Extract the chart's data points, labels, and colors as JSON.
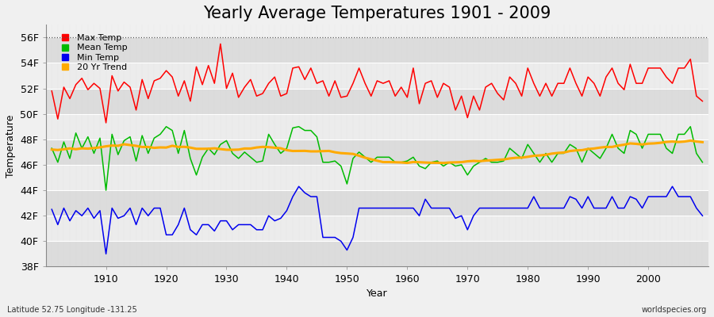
{
  "title": "Yearly Average Temperatures 1901 - 2009",
  "ylabel": "Temperature",
  "xlabel": "Year",
  "footnote_left": "Latitude 52.75 Longitude -131.25",
  "footnote_right": "worldspecies.org",
  "years": [
    1901,
    1902,
    1903,
    1904,
    1905,
    1906,
    1907,
    1908,
    1909,
    1910,
    1911,
    1912,
    1913,
    1914,
    1915,
    1916,
    1917,
    1918,
    1919,
    1920,
    1921,
    1922,
    1923,
    1924,
    1925,
    1926,
    1927,
    1928,
    1929,
    1930,
    1931,
    1932,
    1933,
    1934,
    1935,
    1936,
    1937,
    1938,
    1939,
    1940,
    1941,
    1942,
    1943,
    1944,
    1945,
    1946,
    1947,
    1948,
    1949,
    1950,
    1951,
    1952,
    1953,
    1954,
    1955,
    1956,
    1957,
    1958,
    1959,
    1960,
    1961,
    1962,
    1963,
    1964,
    1965,
    1966,
    1967,
    1968,
    1969,
    1970,
    1971,
    1972,
    1973,
    1974,
    1975,
    1976,
    1977,
    1978,
    1979,
    1980,
    1981,
    1982,
    1983,
    1984,
    1985,
    1986,
    1987,
    1988,
    1989,
    1990,
    1991,
    1992,
    1993,
    1994,
    1995,
    1996,
    1997,
    1998,
    1999,
    2000,
    2001,
    2002,
    2003,
    2004,
    2005,
    2006,
    2007,
    2008,
    2009
  ],
  "max_temp": [
    51.8,
    49.6,
    52.1,
    51.2,
    52.3,
    52.8,
    51.9,
    52.4,
    52.0,
    49.3,
    53.0,
    51.8,
    52.5,
    52.1,
    50.3,
    52.7,
    51.2,
    52.6,
    52.8,
    53.4,
    52.9,
    51.4,
    52.6,
    51.0,
    53.7,
    52.3,
    53.8,
    52.4,
    55.5,
    52.0,
    53.2,
    51.3,
    52.1,
    52.7,
    51.4,
    51.6,
    52.4,
    52.9,
    51.4,
    51.6,
    53.6,
    53.7,
    52.7,
    53.6,
    52.4,
    52.6,
    51.4,
    52.6,
    51.3,
    51.4,
    52.4,
    53.6,
    52.4,
    51.4,
    52.6,
    52.4,
    52.6,
    51.4,
    52.1,
    51.3,
    53.6,
    50.8,
    52.4,
    52.6,
    51.3,
    52.4,
    52.1,
    50.3,
    51.4,
    49.7,
    51.4,
    50.3,
    52.1,
    52.4,
    51.6,
    51.1,
    52.9,
    52.4,
    51.4,
    53.6,
    52.4,
    51.4,
    52.4,
    51.4,
    52.4,
    52.4,
    53.6,
    52.4,
    51.4,
    52.9,
    52.4,
    51.4,
    52.9,
    53.6,
    52.4,
    51.9,
    53.9,
    52.4,
    52.4,
    53.6,
    53.6,
    53.6,
    52.9,
    52.4,
    53.6,
    53.6,
    54.3,
    51.4,
    51.0
  ],
  "mean_temp": [
    47.3,
    46.2,
    47.8,
    46.5,
    48.5,
    47.3,
    48.2,
    46.9,
    48.1,
    44.0,
    48.4,
    46.8,
    47.9,
    48.2,
    46.3,
    48.3,
    46.9,
    48.1,
    48.4,
    49.0,
    48.7,
    46.9,
    48.7,
    46.5,
    45.2,
    46.6,
    47.3,
    46.8,
    47.6,
    47.9,
    46.9,
    46.5,
    47.0,
    46.6,
    46.2,
    46.3,
    48.4,
    47.6,
    46.9,
    47.3,
    48.9,
    49.0,
    48.7,
    48.7,
    48.2,
    46.2,
    46.2,
    46.3,
    45.9,
    44.5,
    46.5,
    47.0,
    46.6,
    46.2,
    46.6,
    46.6,
    46.6,
    46.2,
    46.2,
    46.3,
    46.6,
    45.9,
    45.7,
    46.2,
    46.3,
    45.9,
    46.2,
    45.9,
    46.0,
    45.2,
    45.9,
    46.2,
    46.5,
    46.2,
    46.2,
    46.3,
    47.3,
    46.9,
    46.5,
    47.6,
    46.9,
    46.2,
    46.9,
    46.2,
    46.9,
    46.9,
    47.6,
    47.3,
    46.2,
    47.3,
    46.9,
    46.5,
    47.3,
    48.4,
    47.3,
    46.9,
    48.7,
    48.4,
    47.3,
    48.4,
    48.4,
    48.4,
    47.3,
    46.9,
    48.4,
    48.4,
    49.0,
    46.9,
    46.2
  ],
  "min_temp": [
    42.5,
    41.3,
    42.6,
    41.6,
    42.4,
    42.0,
    42.6,
    41.8,
    42.4,
    39.0,
    42.6,
    41.8,
    42.0,
    42.6,
    41.3,
    42.6,
    42.0,
    42.6,
    42.6,
    40.5,
    40.5,
    41.3,
    42.6,
    40.9,
    40.5,
    41.3,
    41.3,
    40.8,
    41.6,
    41.6,
    40.9,
    41.3,
    41.3,
    41.3,
    40.9,
    40.9,
    42.0,
    41.6,
    41.8,
    42.4,
    43.5,
    44.3,
    43.8,
    43.5,
    43.5,
    40.3,
    40.3,
    40.3,
    40.0,
    39.3,
    40.3,
    42.6,
    42.6,
    42.6,
    42.6,
    42.6,
    42.6,
    42.6,
    42.6,
    42.6,
    42.6,
    42.0,
    43.3,
    42.6,
    42.6,
    42.6,
    42.6,
    41.8,
    42.0,
    40.9,
    42.0,
    42.6,
    42.6,
    42.6,
    42.6,
    42.6,
    42.6,
    42.6,
    42.6,
    42.6,
    43.5,
    42.6,
    42.6,
    42.6,
    42.6,
    42.6,
    43.5,
    43.3,
    42.6,
    43.5,
    42.6,
    42.6,
    42.6,
    43.5,
    42.6,
    42.6,
    43.5,
    43.3,
    42.6,
    43.5,
    43.5,
    43.5,
    43.5,
    44.3,
    43.5,
    43.5,
    43.5,
    42.6,
    42.0
  ],
  "max_color": "#ff0000",
  "mean_color": "#00bb00",
  "min_color": "#0000ee",
  "trend_color": "#ffaa00",
  "bg_color": "#f0f0f0",
  "plot_bg": "#f0f0f0",
  "band_color_dark": "#dcdcdc",
  "band_color_light": "#ececec",
  "grid_color": "#ffffff",
  "ylim_min": 38,
  "ylim_max": 57,
  "yticks": [
    38,
    40,
    42,
    44,
    46,
    48,
    50,
    52,
    54,
    56
  ],
  "ytick_labels": [
    "38F",
    "40F",
    "42F",
    "44F",
    "46F",
    "48F",
    "50F",
    "52F",
    "54F",
    "56F"
  ],
  "xticks": [
    1910,
    1920,
    1930,
    1940,
    1950,
    1960,
    1970,
    1980,
    1990,
    2000
  ],
  "title_fontsize": 15,
  "axis_fontsize": 9,
  "legend_fontsize": 8,
  "line_width": 1.1,
  "trend_window": 20
}
